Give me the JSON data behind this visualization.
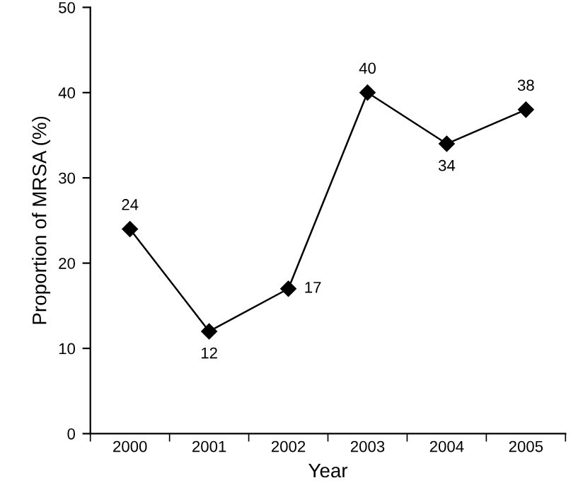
{
  "chart_data": {
    "type": "line",
    "xlabel": "Year",
    "ylabel": "Proportion of MRSA (%)",
    "categories": [
      "2000",
      "2001",
      "2002",
      "2003",
      "2004",
      "2005"
    ],
    "series": [
      {
        "color": "#000000",
        "values": [
          24,
          12,
          17,
          40,
          34,
          38
        ]
      }
    ],
    "ylim": [
      0,
      50
    ],
    "yticks": [
      0,
      10,
      20,
      30,
      40,
      50
    ],
    "grid": false,
    "marker": "diamond",
    "line_style": "solid",
    "data_labels": true
  }
}
